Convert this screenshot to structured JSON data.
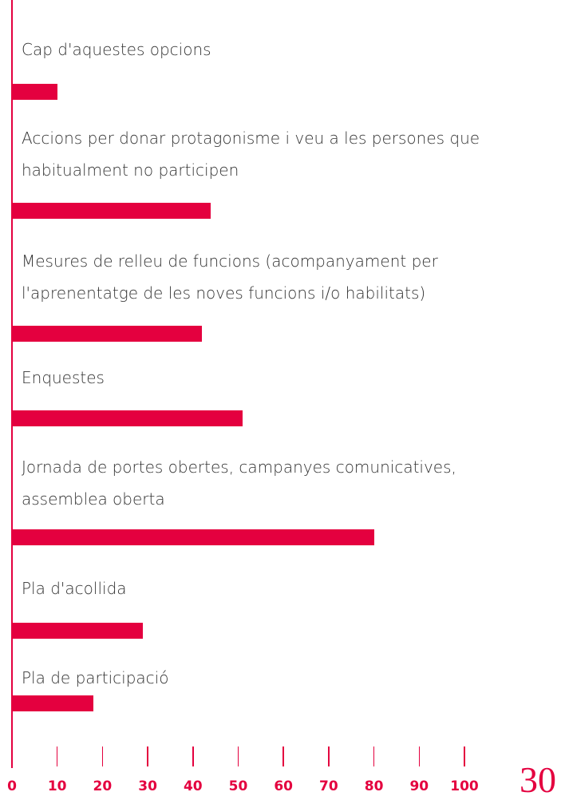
{
  "chart_data": {
    "type": "bar",
    "orientation": "horizontal",
    "color": "#e4003f",
    "categories": [
      "Cap d'aquestes opcions",
      "Accions per donar protagonisme i veu a les persones que habitualment no participen",
      "Mesures de relleu de funcions (acompanyament per l'aprenentatge de les noves funcions i/o habilitats)",
      "Enquestes",
      "Jornada de portes obertes, campanyes comunicatives, assemblea oberta",
      "Pla d'acollida",
      "Pla de participació"
    ],
    "values": [
      10,
      44,
      42,
      51,
      80,
      29,
      18
    ],
    "xlim": [
      0,
      100
    ],
    "xticks": [
      0,
      10,
      20,
      30,
      40,
      50,
      60,
      70,
      80,
      90,
      100
    ]
  },
  "page_number": "30"
}
